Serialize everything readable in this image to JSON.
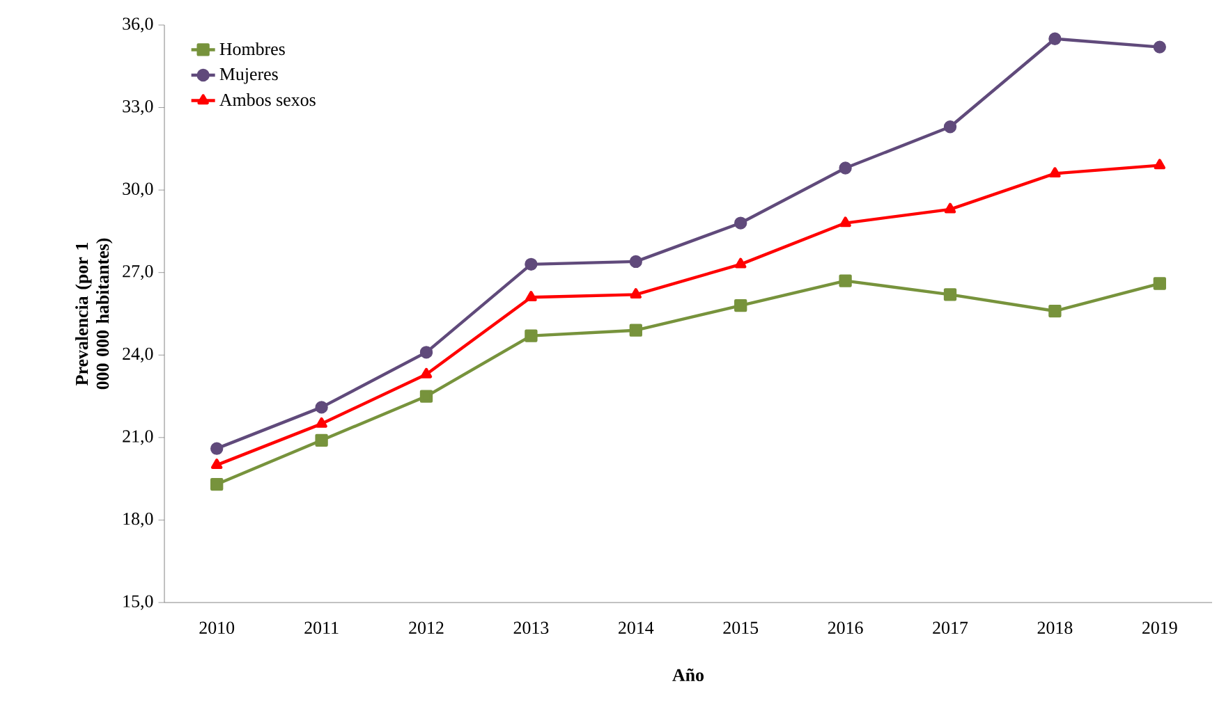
{
  "chart_data": {
    "type": "line",
    "xlabel": "Año",
    "ylabel": "Prevalencia (por 1 000 000 habitantes)",
    "categories": [
      "2010",
      "2011",
      "2012",
      "2013",
      "2014",
      "2015",
      "2016",
      "2017",
      "2018",
      "2019"
    ],
    "series": [
      {
        "name": "Hombres",
        "color": "#77933c",
        "marker": "square",
        "values": [
          19.3,
          20.9,
          22.5,
          24.7,
          24.9,
          25.8,
          26.7,
          26.2,
          25.6,
          26.6
        ]
      },
      {
        "name": "Mujeres",
        "color": "#604a7b",
        "marker": "circle",
        "values": [
          20.6,
          22.1,
          24.1,
          27.3,
          27.4,
          28.8,
          30.8,
          32.3,
          35.5,
          35.2
        ]
      },
      {
        "name": "Ambos sexos",
        "color": "#ff0000",
        "marker": "triangle",
        "values": [
          20.0,
          21.5,
          23.3,
          26.1,
          26.2,
          27.3,
          28.8,
          29.3,
          30.6,
          30.9
        ]
      }
    ],
    "ylim": [
      15,
      36
    ],
    "yticks": [
      {
        "value": 15,
        "label": "15,0"
      },
      {
        "value": 18,
        "label": "18,0"
      },
      {
        "value": 21,
        "label": "21,0"
      },
      {
        "value": 24,
        "label": "24,0"
      },
      {
        "value": 27,
        "label": "27,0"
      },
      {
        "value": 30,
        "label": "30,0"
      },
      {
        "value": 33,
        "label": "33,0"
      },
      {
        "value": 36,
        "label": "36,0"
      }
    ],
    "grid": false,
    "legend": "top left",
    "line_style": "solid"
  }
}
